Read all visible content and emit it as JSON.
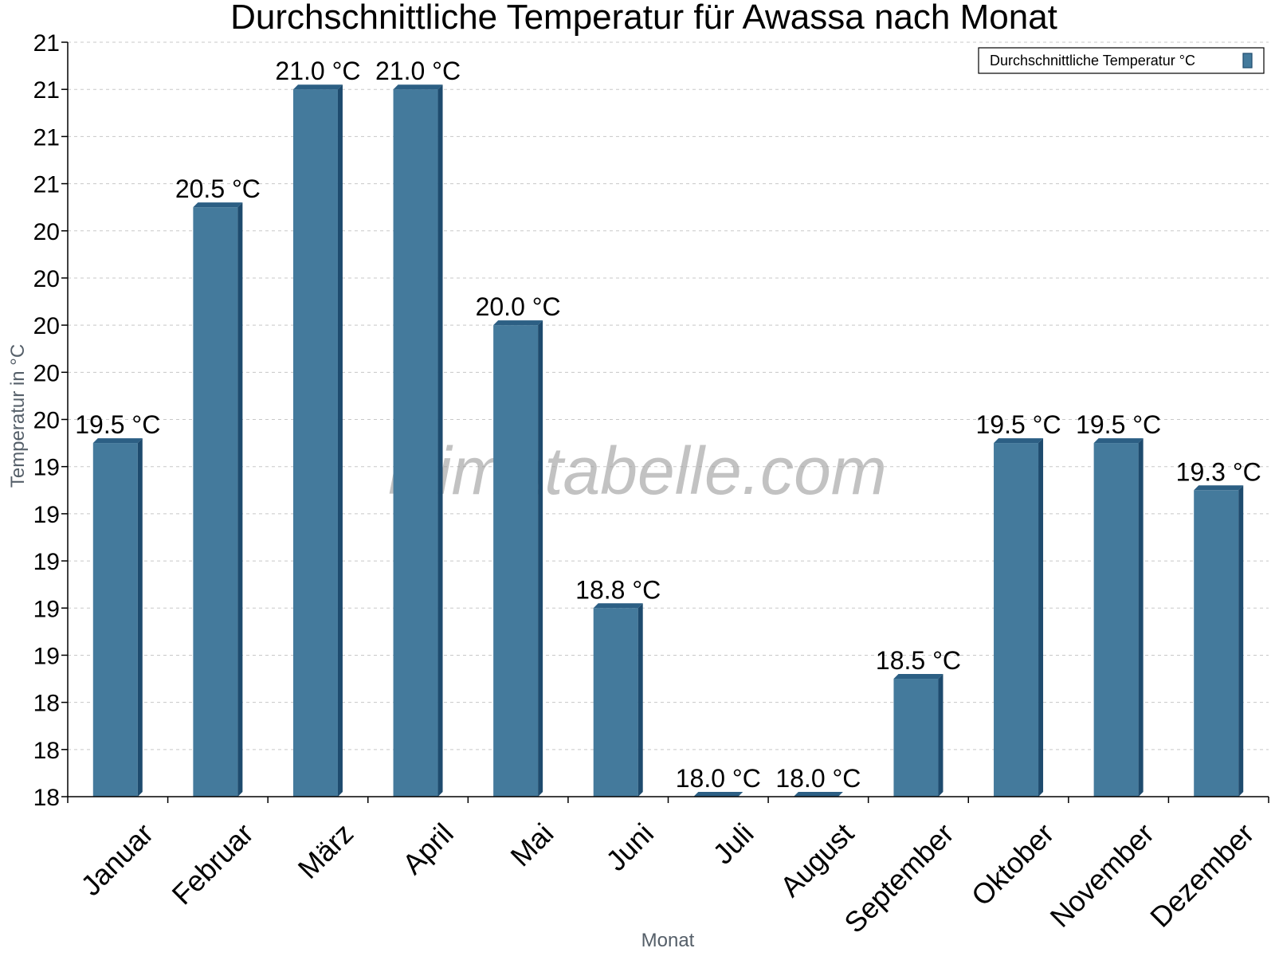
{
  "watermark": "klimatabelle.com",
  "chart_data": {
    "type": "bar",
    "title": "Durchschnittliche Temperatur für Awassa nach Monat",
    "xlabel": "Monat",
    "ylabel": "Temperatur in °C",
    "categories": [
      "Januar",
      "Februar",
      "März",
      "April",
      "Mai",
      "Juni",
      "Juli",
      "August",
      "September",
      "Oktober",
      "November",
      "Dezember"
    ],
    "series": [
      {
        "name": "Durchschnittliche Temperatur °C",
        "values": [
          19.5,
          20.5,
          21.0,
          21.0,
          20.0,
          18.8,
          18.0,
          18.0,
          18.5,
          19.5,
          19.5,
          19.3
        ],
        "labels": [
          "19.5 °C",
          "20.5 °C",
          "21.0 °C",
          "21.0 °C",
          "20.0 °C",
          "18.8 °C",
          "18.0 °C",
          "18.0 °C",
          "18.5 °C",
          "19.5 °C",
          "19.5 °C",
          "19.3 °C"
        ]
      }
    ],
    "ylim": [
      18,
      21.2
    ],
    "yticks": [
      18,
      18.2,
      18.4,
      18.6,
      18.8,
      19,
      19.2,
      19.4,
      19.6,
      19.8,
      20,
      20.2,
      20.4,
      20.6,
      20.8,
      21,
      21.2
    ],
    "ytick_labels": [
      "18",
      "18",
      "18",
      "19",
      "19",
      "19",
      "19",
      "19",
      "20",
      "20",
      "20",
      "20",
      "20",
      "21",
      "21",
      "21",
      "21"
    ],
    "grid": true,
    "legend_position": "top-right",
    "colors": {
      "bar": "#447a9c",
      "bar_side": "#1e4b6e",
      "bar_top": "#2c5f84"
    }
  }
}
